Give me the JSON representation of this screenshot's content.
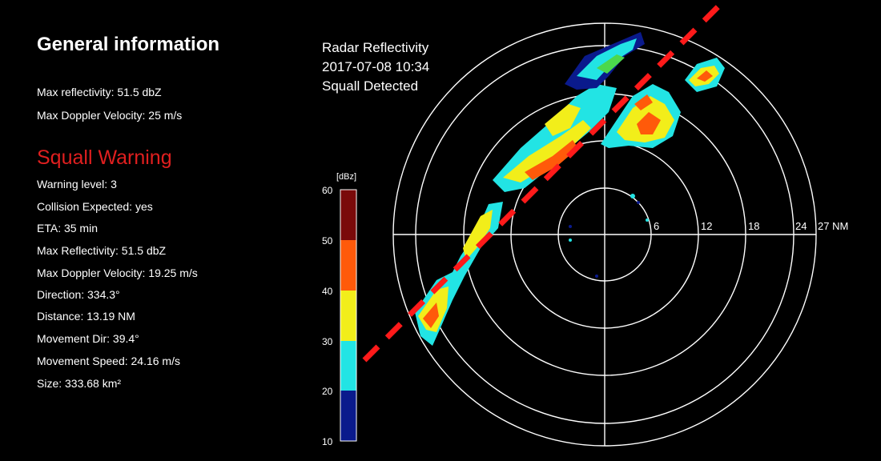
{
  "general": {
    "title": "General information",
    "max_reflectivity": "Max reflectivity: 51.5 dbZ",
    "max_doppler": "Max Doppler Velocity: 25 m/s"
  },
  "squall_warning": {
    "title": "Squall Warning",
    "lines": [
      "Warning level: 3",
      "Collision Expected: yes",
      "ETA: 35 min",
      "Max Reflectivity: 51.5 dbZ",
      "Max Doppler Velocity: 19.25 m/s",
      "Direction: 334.3°",
      "Distance: 13.19 NM",
      "Movement Dir: 39.4°",
      "Movement Speed: 24.16 m/s",
      "Size: 333.68 km²"
    ]
  },
  "radar": {
    "title": "Radar Reflectivity",
    "timestamp": "2017-07-08 10:34",
    "status": "Squall Detected",
    "range_labels": [
      "6",
      "12",
      "18",
      "24",
      "27 NM"
    ],
    "colors": {
      "squall_line": "#ff1a1a",
      "range_rings": "#ffffff"
    }
  },
  "colorbar": {
    "unit": "[dBz]",
    "ticks": [
      "60",
      "50",
      "40",
      "30",
      "20",
      "10"
    ],
    "bands": [
      {
        "from": 50,
        "to": 60,
        "color": "#7a0a0a"
      },
      {
        "from": 40,
        "to": 50,
        "color": "#ff5a0a"
      },
      {
        "from": 30,
        "to": 40,
        "color": "#f2ee1a"
      },
      {
        "from": 20,
        "to": 30,
        "color": "#22e4e4"
      },
      {
        "from": 10,
        "to": 20,
        "color": "#0a1a8c"
      }
    ]
  }
}
